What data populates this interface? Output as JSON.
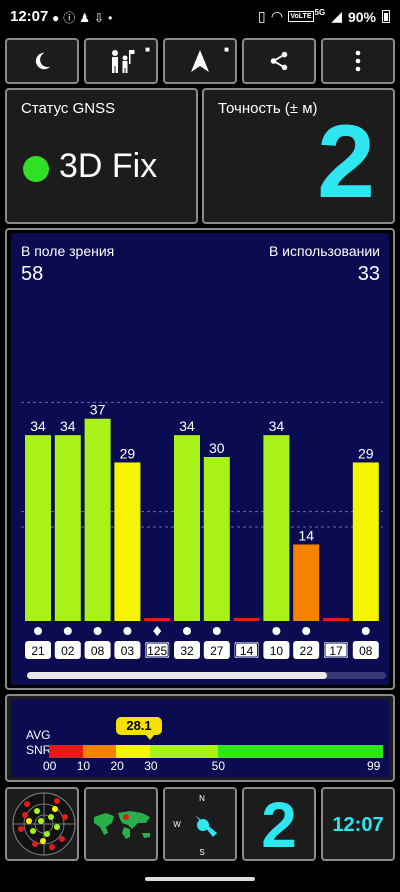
{
  "statusbar": {
    "time": "12:07",
    "notification_icons": [
      "chat-bubble-icon",
      "info-icon",
      "person-icon",
      "download-icon",
      "dot-icon"
    ],
    "right_icons": [
      "vibrate-icon",
      "wifi-icon",
      "volte-icon",
      "signal-icon"
    ],
    "volte": "VoLTE",
    "network": "5G",
    "battery": "90%"
  },
  "toolbar": {
    "buttons": [
      {
        "icon": "moon-icon",
        "locked": false
      },
      {
        "icon": "people-flag-icon",
        "locked": true
      },
      {
        "icon": "navigation-arrow-icon",
        "locked": true
      },
      {
        "icon": "share-icon",
        "locked": false
      },
      {
        "icon": "more-vert-icon",
        "locked": false
      }
    ]
  },
  "gnss_status": {
    "label": "Статус GNSS",
    "value": "3D Fix",
    "indicator_color": "#2fe024"
  },
  "accuracy": {
    "label": "Точность (± м)",
    "value": "2"
  },
  "satellites": {
    "in_view_label": "В поле зрения",
    "in_view": "58",
    "in_use_label": "В использовании",
    "in_use": "33"
  },
  "chart_data": {
    "type": "bar",
    "categories": [
      "21",
      "02",
      "08",
      "03",
      "125",
      "32",
      "27",
      "14",
      "10",
      "22",
      "17",
      "08"
    ],
    "values": [
      34,
      34,
      37,
      29,
      0,
      34,
      30,
      0,
      34,
      14,
      0,
      29
    ],
    "value_labels": [
      "34",
      "34",
      "37",
      "29",
      "",
      "34",
      "30",
      "",
      "34",
      "14",
      "",
      "29"
    ],
    "colors": [
      "#a8f21a",
      "#a8f21a",
      "#a8f21a",
      "#f5f500",
      "#e31b1b",
      "#a8f21a",
      "#a8f21a",
      "#e31b1b",
      "#a8f21a",
      "#f58200",
      "#e31b1b",
      "#f5f500"
    ],
    "marker": [
      "circle",
      "circle",
      "circle",
      "circle",
      "diamond",
      "circle",
      "circle",
      "none",
      "circle",
      "circle",
      "none",
      "circle"
    ],
    "boxed": [
      false,
      false,
      false,
      false,
      true,
      false,
      false,
      true,
      false,
      false,
      true,
      false
    ],
    "ylim": [
      0,
      60
    ],
    "grid": true
  },
  "snr": {
    "avg_label": "AVG",
    "snr_label": "SNR",
    "avg_value": "28.1",
    "ticks": [
      "00",
      "10",
      "20",
      "30",
      "50",
      "99"
    ],
    "segments": [
      {
        "from": 0,
        "to": 10,
        "color": "#e31b1b"
      },
      {
        "from": 10,
        "to": 20,
        "color": "#f58200"
      },
      {
        "from": 20,
        "to": 30,
        "color": "#f5f500"
      },
      {
        "from": 30,
        "to": 50,
        "color": "#a8f21a"
      },
      {
        "from": 50,
        "to": 99,
        "color": "#2ee61a"
      }
    ]
  },
  "dock": {
    "tiles": [
      "radar-icon",
      "world-map-icon",
      "compass-icon"
    ],
    "compass_letters": [
      "N",
      "W",
      "S"
    ],
    "accuracy_value": "2",
    "clock": "12:07"
  }
}
